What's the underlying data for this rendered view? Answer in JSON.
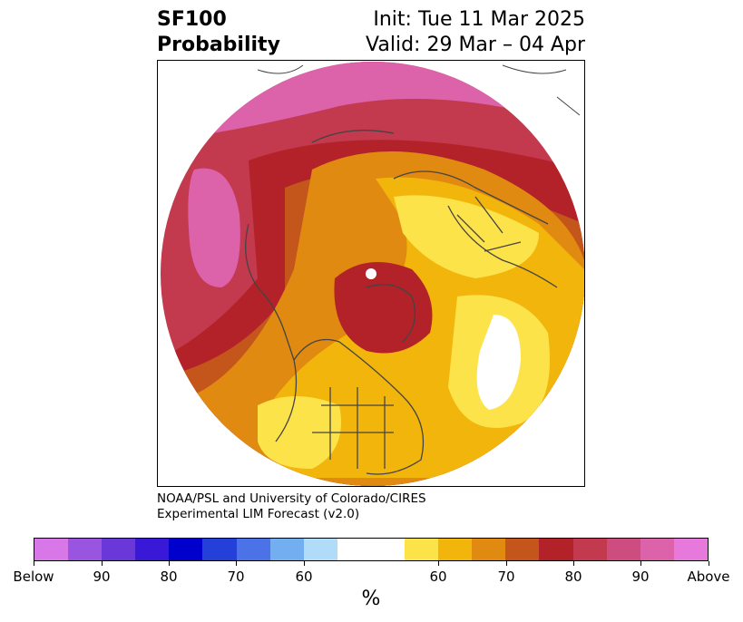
{
  "header": {
    "title_line1": "SF100",
    "title_line2": "Probability",
    "init": "Init: Tue 11 Mar 2025",
    "valid": "Valid: 29 Mar – 04 Apr"
  },
  "credit": {
    "line1": "NOAA/PSL and University of Colorado/CIRES",
    "line2": "Experimental LIM Forecast (v2.0)"
  },
  "colorbar": {
    "colors": [
      "#d878e8",
      "#9955e0",
      "#6a38d8",
      "#3a18d8",
      "#0000cc",
      "#2440d8",
      "#4b72e6",
      "#72aef0",
      "#b0dcf8",
      "#ffffff",
      "#fde34a",
      "#f2b50b",
      "#e08a12",
      "#c4561b",
      "#b22228",
      "#c33a4e",
      "#ce4d80",
      "#dc62aa",
      "#e779dc"
    ],
    "ticks": [
      "Below",
      "90",
      "80",
      "70",
      "60",
      "60",
      "70",
      "80",
      "90",
      "Above"
    ],
    "unit": "%"
  },
  "map": {
    "legend_levels": [
      "Below",
      "90",
      "80",
      "70",
      "60",
      "60",
      "70",
      "80",
      "90",
      "Above"
    ]
  }
}
